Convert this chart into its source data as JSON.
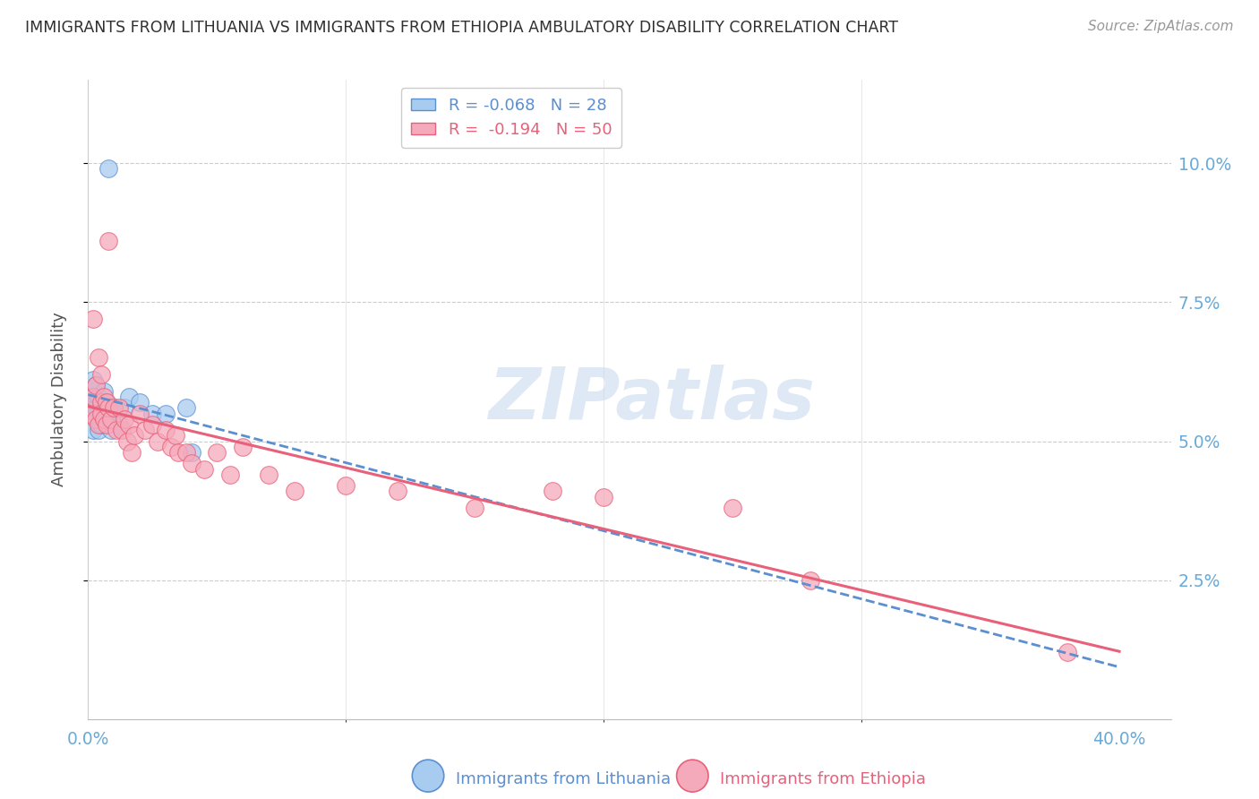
{
  "title": "IMMIGRANTS FROM LITHUANIA VS IMMIGRANTS FROM ETHIOPIA AMBULATORY DISABILITY CORRELATION CHART",
  "source": "Source: ZipAtlas.com",
  "ylabel": "Ambulatory Disability",
  "ytick_labels": [
    "10.0%",
    "7.5%",
    "5.0%",
    "2.5%"
  ],
  "ytick_values": [
    0.1,
    0.075,
    0.05,
    0.025
  ],
  "xlim": [
    0.0,
    0.42
  ],
  "ylim": [
    0.0,
    0.115
  ],
  "xtick_positions": [
    0.0,
    0.4
  ],
  "xtick_labels": [
    "0.0%",
    "40.0%"
  ],
  "legend_r1": "R = -0.068",
  "legend_n1": "N = 28",
  "legend_r2": "R =  -0.194",
  "legend_n2": "N = 50",
  "color_lithuania": "#A8CCF0",
  "color_ethiopia": "#F5AABB",
  "color_trendline_lithuania": "#5B8FD0",
  "color_trendline_ethiopia": "#E8607A",
  "color_axis_labels": "#6AAAD8",
  "color_title": "#303030",
  "color_source": "#999999",
  "watermark": "ZIPatlas",
  "lithuania_x": [
    0.008,
    0.001,
    0.002,
    0.002,
    0.002,
    0.003,
    0.003,
    0.003,
    0.003,
    0.004,
    0.004,
    0.004,
    0.005,
    0.005,
    0.006,
    0.006,
    0.007,
    0.009,
    0.009,
    0.01,
    0.012,
    0.014,
    0.016,
    0.02,
    0.025,
    0.03,
    0.038,
    0.04
  ],
  "lithuania_y": [
    0.099,
    0.057,
    0.061,
    0.058,
    0.052,
    0.055,
    0.057,
    0.06,
    0.056,
    0.054,
    0.052,
    0.058,
    0.053,
    0.056,
    0.059,
    0.055,
    0.057,
    0.052,
    0.054,
    0.056,
    0.053,
    0.056,
    0.058,
    0.057,
    0.055,
    0.055,
    0.056,
    0.048
  ],
  "ethiopia_x": [
    0.001,
    0.002,
    0.002,
    0.003,
    0.003,
    0.004,
    0.004,
    0.005,
    0.005,
    0.005,
    0.006,
    0.006,
    0.007,
    0.007,
    0.008,
    0.008,
    0.009,
    0.01,
    0.011,
    0.012,
    0.013,
    0.014,
    0.015,
    0.016,
    0.017,
    0.018,
    0.02,
    0.022,
    0.025,
    0.027,
    0.03,
    0.032,
    0.034,
    0.035,
    0.038,
    0.04,
    0.045,
    0.05,
    0.055,
    0.06,
    0.07,
    0.08,
    0.1,
    0.12,
    0.15,
    0.18,
    0.2,
    0.25,
    0.28,
    0.38
  ],
  "ethiopia_y": [
    0.055,
    0.058,
    0.072,
    0.054,
    0.06,
    0.053,
    0.065,
    0.057,
    0.055,
    0.062,
    0.054,
    0.058,
    0.053,
    0.057,
    0.056,
    0.086,
    0.054,
    0.056,
    0.052,
    0.056,
    0.052,
    0.054,
    0.05,
    0.053,
    0.048,
    0.051,
    0.055,
    0.052,
    0.053,
    0.05,
    0.052,
    0.049,
    0.051,
    0.048,
    0.048,
    0.046,
    0.045,
    0.048,
    0.044,
    0.049,
    0.044,
    0.041,
    0.042,
    0.041,
    0.038,
    0.041,
    0.04,
    0.038,
    0.025,
    0.012
  ]
}
